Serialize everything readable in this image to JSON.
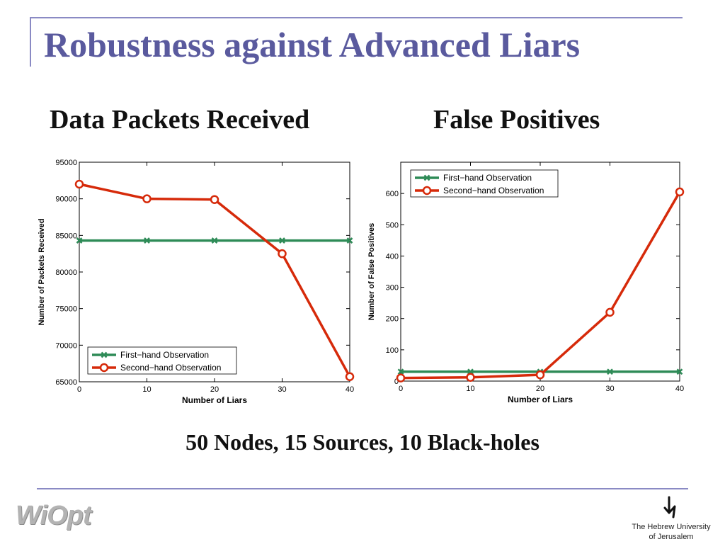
{
  "slide": {
    "title": "Robustness against Advanced Liars",
    "left_heading": "Data Packets Received",
    "right_heading": "False Positives",
    "footer_caption": "50 Nodes, 15 Sources, 10 Black-holes",
    "logo_left": "WiOpt",
    "logo_right_line1": "The Hebrew University",
    "logo_right_line2": "of Jerusalem"
  },
  "colors": {
    "title": "#5a5a9e",
    "rule": "#8a8ac4",
    "first_hand": "#2e8b57",
    "second_hand": "#d62a0a"
  },
  "chart_data": [
    {
      "type": "line",
      "title": "",
      "xlabel": "Number of Liars",
      "ylabel": "Number of Packets Received",
      "x": [
        0,
        10,
        20,
        30,
        40
      ],
      "xlim": [
        0,
        40
      ],
      "ylim": [
        65000,
        95000
      ],
      "xticks": [
        0,
        10,
        20,
        30,
        40
      ],
      "yticks": [
        65000,
        70000,
        75000,
        80000,
        85000,
        90000,
        95000
      ],
      "grid": false,
      "legend_position": "bottom-left",
      "series": [
        {
          "name": "First−hand Observation",
          "marker": "x",
          "values": [
            84300,
            84300,
            84300,
            84300,
            84300
          ]
        },
        {
          "name": "Second−hand Observation",
          "marker": "o",
          "values": [
            92000,
            90000,
            89900,
            82500,
            65700
          ]
        }
      ]
    },
    {
      "type": "line",
      "title": "",
      "xlabel": "Number of Liars",
      "ylabel": "Number of False Positives",
      "x": [
        0,
        10,
        20,
        30,
        40
      ],
      "xlim": [
        0,
        40
      ],
      "ylim": [
        0,
        700
      ],
      "xticks": [
        0,
        10,
        20,
        30,
        40
      ],
      "yticks": [
        0,
        100,
        200,
        300,
        400,
        500,
        600
      ],
      "grid": false,
      "legend_position": "top-left",
      "series": [
        {
          "name": "First−hand Observation",
          "marker": "x",
          "values": [
            30,
            30,
            30,
            30,
            30
          ]
        },
        {
          "name": "Second−hand Observation",
          "marker": "o",
          "values": [
            10,
            12,
            20,
            220,
            605
          ]
        }
      ]
    }
  ]
}
